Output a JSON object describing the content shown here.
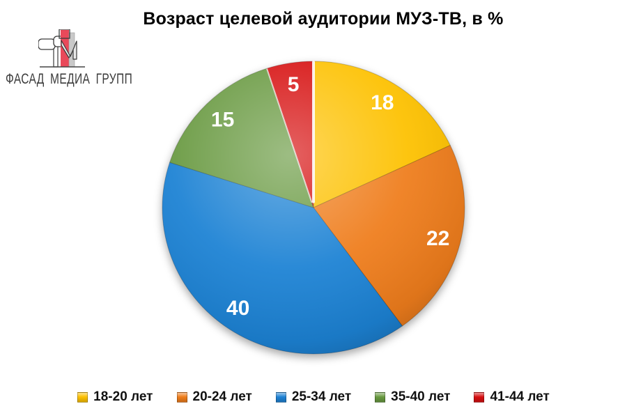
{
  "logo": {
    "text": "ФАСАД МЕДИА ГРУПП",
    "accent_red": "#e9495a",
    "bar_gray": "#c9c9c9",
    "outline_color": "#3a3a3a",
    "text_color": "#3b3b3b"
  },
  "chart_data": {
    "type": "pie",
    "title": "Возраст целевой аудитории МУЗ-ТВ, в %",
    "categories": [
      "18-20 лет",
      "20-24 лет",
      "25-34 лет",
      "35-40 лет",
      "41-44 лет"
    ],
    "values": [
      18,
      22,
      40,
      15,
      5
    ],
    "colors": [
      "#fdc101",
      "#ef7d1a",
      "#1e82d4",
      "#68993f",
      "#d60e10"
    ],
    "data_label_color": "#ffffff",
    "start_angle_deg": 0,
    "direction": "clockwise",
    "legend_position": "bottom",
    "title_color": "#000000",
    "legend_text_color": "#111111",
    "background": "#ffffff"
  }
}
